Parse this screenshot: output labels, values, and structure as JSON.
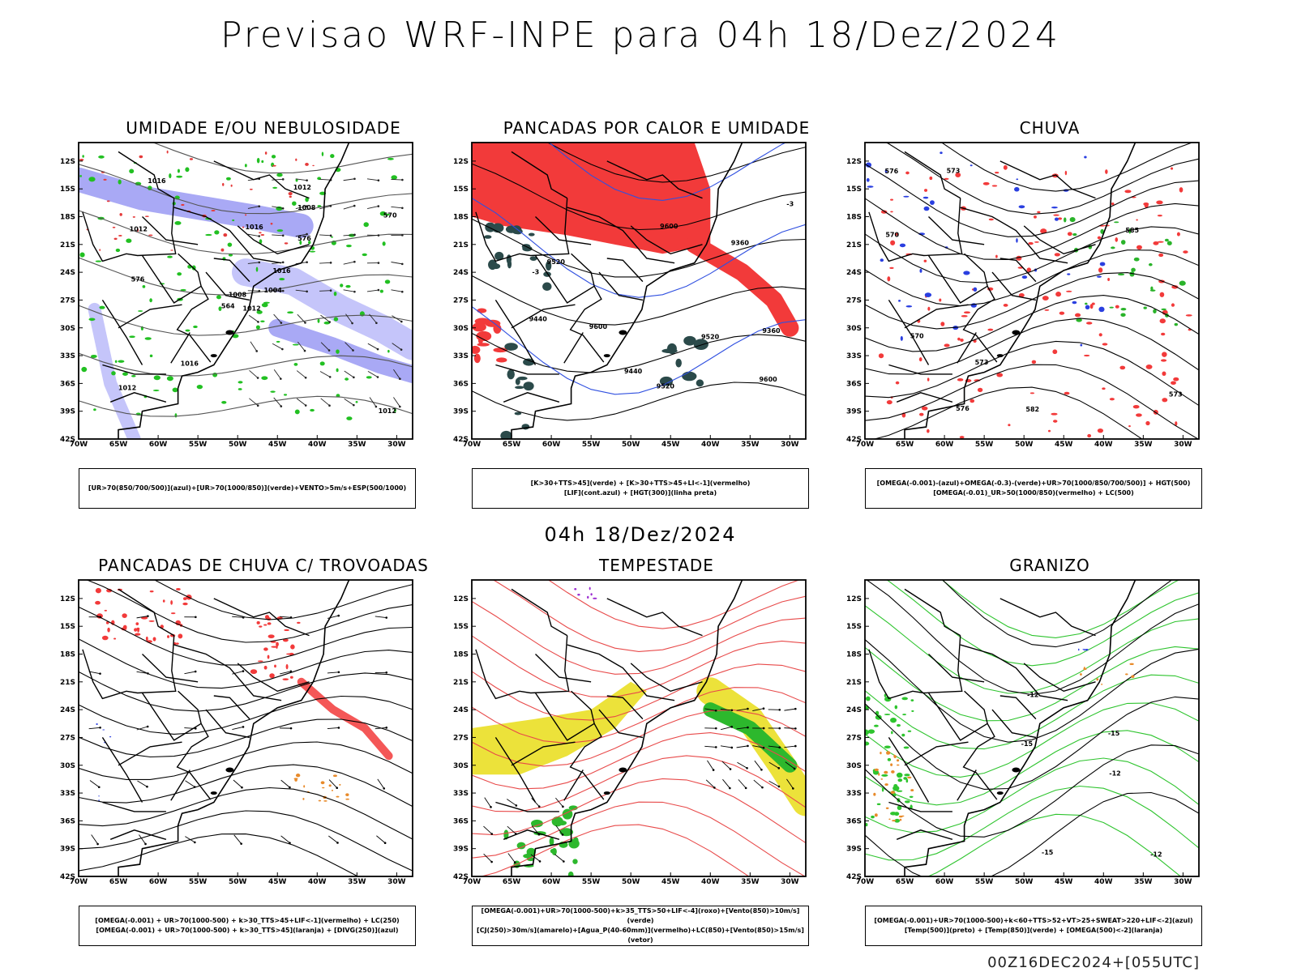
{
  "main_title": "Previsao WRF-INPE  para 04h 18/Dez/2024",
  "mid_title": "04h 18/Dez/2024",
  "footer": "00Z16DEC2024+[055UTC]",
  "axes": {
    "lat_labels": [
      "12S",
      "15S",
      "18S",
      "21S",
      "24S",
      "27S",
      "30S",
      "33S",
      "36S",
      "39S",
      "42S"
    ],
    "lon_labels": [
      "70W",
      "65W",
      "60W",
      "55W",
      "50W",
      "45W",
      "40W",
      "35W",
      "30W"
    ]
  },
  "panels": [
    {
      "title": "UMIDADE E/OU NEBULOSIDADE",
      "legend": [
        "[UR>70(850/700/500)](azul)+[UR>70(1000/850)](verde)+VENTO>5m/s+ESP(500/1000)"
      ]
    },
    {
      "title": "PANCADAS POR CALOR E UMIDADE",
      "legend": [
        "[K>30+TTS>45](verde) + [K>30+TTS>45+LI<-1](vermelho)",
        "[LIF](cont.azul) + [HGT(300)](linha preta)"
      ]
    },
    {
      "title": "CHUVA",
      "legend": [
        "[OMEGA(-0.001)-(azul)+OMEGA(-0.3)-(verde)+UR>70(1000/850/700/500)] + HGT(500)",
        "[OMEGA(-0.01)_UR>50(1000/850)(vermelho) + LC(500)"
      ]
    },
    {
      "title": "PANCADAS DE CHUVA C/ TROVOADAS",
      "legend": [
        "[OMEGA(-0.001) + UR>70(1000-500) + k>30_TTS>45+LIF<-1](vermelho) + LC(250)",
        "[OMEGA(-0.001) + UR>70(1000-500) + k>30_TTS>45](laranja) + [DIVG(250)](azul)"
      ]
    },
    {
      "title": "TEMPESTADE",
      "legend": [
        "[OMEGA(-0.001)+UR>70(1000-500)+k>35_TTS>50+LIF<-4](roxo)+[Vento(850)>10m/s](verde)",
        "[CJ(250)>30m/s](amarelo)+[Agua_P(40-60mm)](vermelho)+LC(850)+[Vento(850)>15m/s](vetor)"
      ]
    },
    {
      "title": "GRANIZO",
      "legend": [
        "[OMEGA(-0.001)+UR>70(1000-500)+k<60+TTS>52+VT>25+SWEAT>220+LIF<-2](azul)",
        "[Temp(500)](preto) + [Temp(850)](verde) + [OMEGA(500)<-2](laranja)"
      ]
    }
  ],
  "contour_labels": {
    "p1": [
      "1012",
      "1012",
      "1008",
      "1012",
      "1016",
      "1016",
      "1012",
      "1016",
      "1008",
      "1004",
      "1016",
      "1012",
      "576",
      "570",
      "564",
      "576"
    ],
    "p2": [
      "9600",
      "9520",
      "9600",
      "9440",
      "9520",
      "9440",
      "9360",
      "9600",
      "9520",
      "9360",
      "-3",
      "-3"
    ],
    "p3": [
      "585",
      "582",
      "576",
      "573",
      "570",
      "573",
      "576",
      "570",
      "573"
    ],
    "p6": [
      "-12",
      "-12",
      "-12",
      "-15",
      "-15",
      "-15"
    ]
  }
}
